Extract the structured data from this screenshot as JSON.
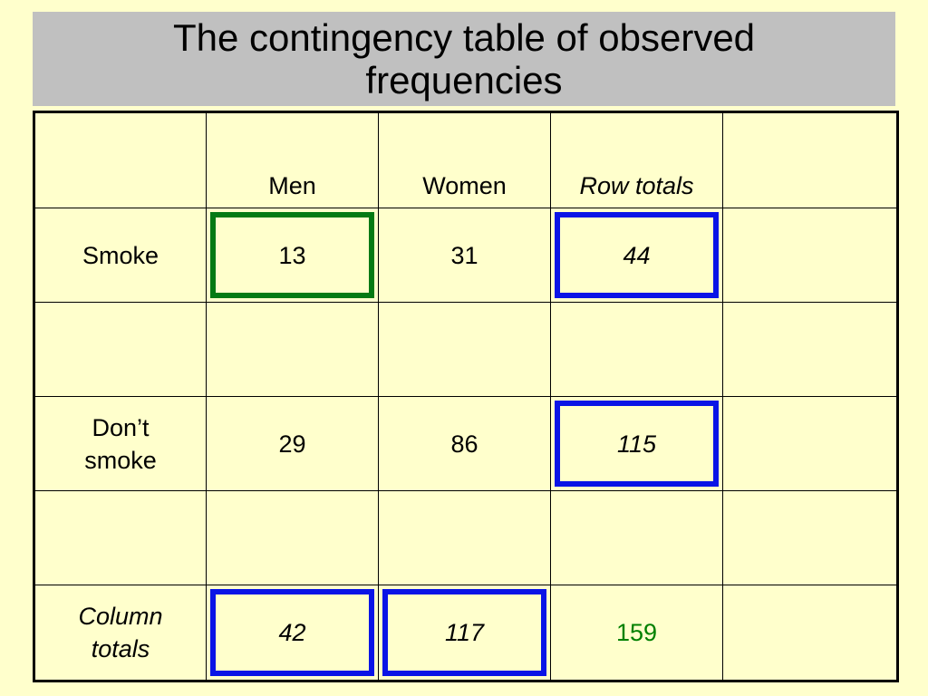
{
  "title": {
    "line1": "The contingency table of observed",
    "line2": "frequencies"
  },
  "table": {
    "headers": [
      "",
      "Men",
      "Women",
      "Row totals",
      ""
    ],
    "rows": [
      {
        "label": "Smoke",
        "men": "13",
        "women": "31",
        "total": "44"
      },
      {
        "label_line1": "Don’t",
        "label_line2": "smoke",
        "men": "29",
        "women": "86",
        "total": "115"
      },
      {
        "label_line1": "Column",
        "label_line2": "totals",
        "men": "42",
        "women": "117",
        "total": "159"
      }
    ]
  },
  "colors": {
    "background": "#ffffcc",
    "title_band": "#c0c0c0",
    "highlight_green": "#047a14",
    "highlight_blue": "#0a14e6",
    "grand_total_text": "#008000"
  }
}
